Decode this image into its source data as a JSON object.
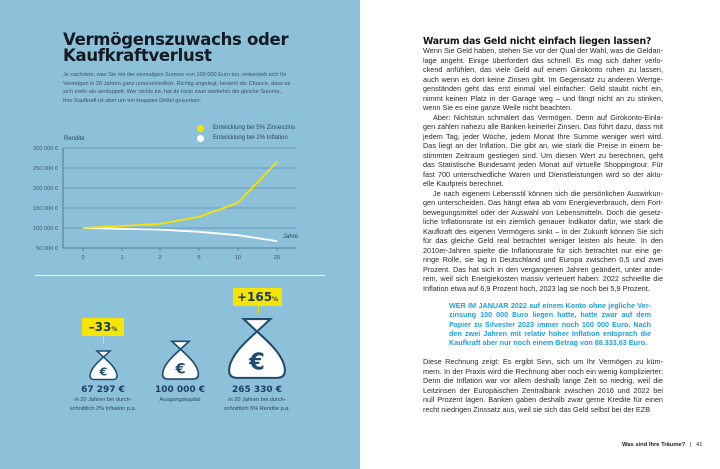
{
  "left": {
    "title_lines": [
      "Vermögenszuwachs oder",
      "Kaufkraftverlust"
    ],
    "intro_lines": [
      "Je nachdem, was Sie mit der einmaligen Summe von 100 000 Euro tun, entwickelt sich Ihr",
      "Vermögen in 20 Jahren ganz unterschiedlich. Richtig angelegt, besteht die Chance, dass es",
      "sich mehr als verdoppelt. Wer nichts tut, hat de facto zwar weiterhin die gleiche Summe,",
      "Ihre Kaufkraft ist aber um ein knappes Drittel gesunken."
    ],
    "stats": [
      {
        "badge": "–33",
        "badge_unit": "%",
        "value": "67 297 €",
        "caption": [
          "in 20 Jahren bei durch-",
          "schnittlich 2% Inflation p.a."
        ],
        "icon": "money-bag-euro-icon"
      },
      {
        "badge": null,
        "value": "100 000 €",
        "caption": [
          "Ausgangskapital"
        ],
        "icon": "money-bag-euro-icon"
      },
      {
        "badge": "+165",
        "badge_unit": "%",
        "value": "265 330 €",
        "caption": [
          "in 20 Jahren bei durch-",
          "schnittlich 5% Rendite p.a."
        ],
        "icon": "money-bag-euro-icon"
      }
    ],
    "colors": {
      "panel": "#8dc1d9",
      "yellow": "#f6e500",
      "navy": "#1c3f62"
    }
  },
  "chart_data": {
    "type": "line",
    "title": "",
    "ylabel": "Rendite",
    "xlabel": "Jahre",
    "categories": [
      "0",
      "1",
      "2",
      "5",
      "10",
      "20"
    ],
    "yticks": [
      "300 000 €",
      "250 000 €",
      "200 000 €",
      "150 000 €",
      "100 000 €",
      "50 000 €"
    ],
    "ytick_values": [
      300000,
      250000,
      200000,
      150000,
      100000,
      50000
    ],
    "ylim": [
      50000,
      300000
    ],
    "grid": true,
    "legend_placement": "top-right",
    "series": [
      {
        "name": "Entwicklung bei 5% Zinseszins",
        "color": "#f6e500",
        "values": [
          100000,
          105000,
          110250,
          127628,
          162889,
          265330
        ]
      },
      {
        "name": "Entwicklung bei 2% Inflation",
        "color": "#ffffff",
        "values": [
          100000,
          98039,
          96117,
          90573,
          82035,
          67297
        ]
      }
    ]
  },
  "right": {
    "title": "Warum das Geld nicht einfach liegen lassen?",
    "paragraphs": [
      {
        "indent": false,
        "lines": [
          "Wenn Sie Geld haben, stehen Sie vor der Qual der Wahl, was die Geldan-",
          "lage angeht. Einige überfordert das schnell. Es mag sich daher verlo-",
          "ckend anfühlen, das viele Geld auf einem Girokonto ruhen zu lassen,",
          "auch wenn es dort keine Zinsen gibt. Im Gegensatz zu anderen Wertge-",
          "genständen geht das erst einmal viel einfacher: Geld staubt nicht ein,",
          "nimmt keinen Platz in der Garage weg – und fängt nicht an zu stinken,",
          "wenn Sie es eine ganze Weile nicht beachten."
        ]
      },
      {
        "indent": true,
        "lines": [
          "Aber: Nichtstun schmälert das Vermögen. Denn auf Girokonto-Einla-",
          "gen zahlen nahezu alle Banken keinerlei Zinsen. Das führt dazu, dass mit",
          "jedem Tag, jeder Woche, jedem Monat Ihre Summe weniger wert wird.",
          "Das liegt an der Inflation. Die gibt an, wie stark die Preise in einem be-",
          "stimmten Zeitraum gestiegen sind. Um diesen Wert zu berechnen, geht",
          "das Statistische Bundesamt jeden Monat auf virtuelle Shoppingtour. Für",
          "fast 700 unterschiedliche Waren und Dienstleistungen wird so der aktu-",
          "elle Kaufpreis berechnet."
        ]
      },
      {
        "indent": true,
        "lines": [
          "Je nach eigenem Lebensstil können sich die persönlichen Auswirkun-",
          "gen unterscheiden. Das hängt etwa ab vom Energieverbrauch, dem Fort-",
          "bewegungsmittel oder der Auswahl von Lebensmitteln. Doch die gesetz-",
          "liche Inflationsrate ist ein ziemlich genauer Indikator dafür, wie stark die",
          "Kaufkraft des eigenen Vermögens sinkt – in der Zukunft können Sie sich",
          "für das gleiche Geld real betrachtet weniger leisten als heute. In den",
          "2010er-Jahren spielte die Inflationsrate für sich betrachtet nur eine ge-",
          "ringe Rolle, sie lag in Deutschland und Europa zwischen 0,5 und zwei",
          "Prozent. Das hat sich in den vergangenen Jahren geändert, unter ande-",
          "rem, weil sich Energiekosten massiv verteuert haben: 2022 schnellte die",
          "Inflation etwa auf 6,9 Prozent hoch, 2023 lag sie noch bei 5,9 Prozent."
        ]
      }
    ],
    "highlight_lines": [
      "WER IM JANUAR 2022 auf einem Konto ohne jegliche Ver-",
      "zinsung 100 000 Euro liegen hatte, hatte zwar auf dem",
      "Papier zu Silvester 2023 immer noch 100 000 Euro. Nach",
      "den zwei Jahren mit relativ hoher Inflation entsprach die",
      "Kaufkraft aber nur noch einem Betrag von 88.333,63 Euro."
    ],
    "closing_lines": [
      "Diese Rechnung zeigt: Es ergibt Sinn, sich um Ihr Vermögen zu küm-",
      "mern. In der Praxis wird die Rechnung aber noch ein wenig komplizierter:",
      "Denn die Inflation war vor allem deshalb lange Zeit so niedrig, weil die",
      "Leitzinsen der Europäischen Zentralbank zwischen 2016 und 2022 bei",
      "null Prozent lagen. Banken gaben deshalb zwar gerne Kredite für einen",
      "recht niedrigen Zinssatz aus, weil sie sich das Geld selbst bei der EZB"
    ],
    "highlight_color": "#1e9fdc"
  },
  "footer": {
    "chapter": "Was sind Ihre Träume?",
    "separator": "|",
    "page": "41"
  }
}
